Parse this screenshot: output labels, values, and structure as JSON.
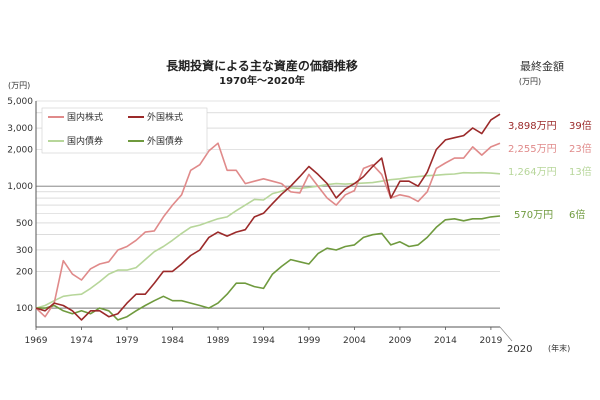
{
  "chart_data": {
    "type": "line",
    "title": "長期投資による主な資産の価額推移",
    "subtitle": "1970年～2020年",
    "ylabel": "(万円)",
    "xlabel": "(年末)",
    "yscale": "log",
    "ylim": [
      70,
      5000
    ],
    "xlim": [
      1969,
      2020
    ],
    "yticks": [
      100,
      200,
      300,
      500,
      1000,
      2000,
      3000,
      5000
    ],
    "ytick_labels": [
      "100",
      "200",
      "300",
      "500",
      "1,000",
      "2,000",
      "3,000",
      "5,000"
    ],
    "xticks": [
      1969,
      1974,
      1979,
      1984,
      1989,
      1994,
      1999,
      2004,
      2009,
      2014,
      2019
    ],
    "xtick_labels": [
      "1969",
      "1974",
      "1979",
      "1984",
      "1989",
      "1994",
      "1999",
      "2004",
      "2009",
      "2014",
      "2019"
    ],
    "x_end_label": "2020",
    "legend": "top-left",
    "grid": true,
    "final_header": "最終金額",
    "final_unit": "(万円)",
    "series": [
      {
        "name": "国内株式",
        "color": "#e08a8a",
        "final_amount": "2,255万円",
        "final_multiple": "23倍",
        "x": [
          1969,
          1970,
          1971,
          1972,
          1973,
          1974,
          1975,
          1976,
          1977,
          1978,
          1979,
          1980,
          1981,
          1982,
          1983,
          1984,
          1985,
          1986,
          1987,
          1988,
          1989,
          1990,
          1991,
          1992,
          1993,
          1994,
          1995,
          1996,
          1997,
          1998,
          1999,
          2000,
          2001,
          2002,
          2003,
          2004,
          2005,
          2006,
          2007,
          2008,
          2009,
          2010,
          2011,
          2012,
          2013,
          2014,
          2015,
          2016,
          2017,
          2018,
          2019,
          2020
        ],
        "y": [
          100,
          85,
          110,
          245,
          190,
          170,
          210,
          230,
          240,
          300,
          320,
          360,
          420,
          430,
          560,
          700,
          850,
          1350,
          1500,
          1950,
          2255,
          1350,
          1350,
          1050,
          1100,
          1150,
          1100,
          1050,
          900,
          880,
          1250,
          1000,
          800,
          700,
          850,
          920,
          1400,
          1500,
          1250,
          800,
          850,
          820,
          750,
          900,
          1400,
          1550,
          1700,
          1700,
          2100,
          1800,
          2100,
          2255
        ]
      },
      {
        "name": "外国株式",
        "color": "#9b2a2a",
        "final_amount": "3,898万円",
        "final_multiple": "39倍",
        "x": [
          1969,
          1970,
          1971,
          1972,
          1973,
          1974,
          1975,
          1976,
          1977,
          1978,
          1979,
          1980,
          1981,
          1982,
          1983,
          1984,
          1985,
          1986,
          1987,
          1988,
          1989,
          1990,
          1991,
          1992,
          1993,
          1994,
          1995,
          1996,
          1997,
          1998,
          1999,
          2000,
          2001,
          2002,
          2003,
          2004,
          2005,
          2006,
          2007,
          2008,
          2009,
          2010,
          2011,
          2012,
          2013,
          2014,
          2015,
          2016,
          2017,
          2018,
          2019,
          2020
        ],
        "y": [
          100,
          95,
          110,
          105,
          95,
          80,
          95,
          95,
          85,
          90,
          110,
          130,
          130,
          160,
          200,
          200,
          230,
          270,
          300,
          380,
          420,
          390,
          420,
          440,
          560,
          600,
          720,
          860,
          1000,
          1200,
          1450,
          1250,
          1050,
          800,
          950,
          1050,
          1200,
          1450,
          1700,
          800,
          1100,
          1100,
          1000,
          1300,
          2000,
          2400,
          2500,
          2600,
          3000,
          2700,
          3500,
          3898
        ]
      },
      {
        "name": "国内債券",
        "color": "#b7d69a",
        "final_amount": "1,264万円",
        "final_multiple": "13倍",
        "x": [
          1969,
          1970,
          1971,
          1972,
          1973,
          1974,
          1975,
          1976,
          1977,
          1978,
          1979,
          1980,
          1981,
          1982,
          1983,
          1984,
          1985,
          1986,
          1987,
          1988,
          1989,
          1990,
          1991,
          1992,
          1993,
          1994,
          1995,
          1996,
          1997,
          1998,
          1999,
          2000,
          2001,
          2002,
          2003,
          2004,
          2005,
          2006,
          2007,
          2008,
          2009,
          2010,
          2011,
          2012,
          2013,
          2014,
          2015,
          2016,
          2017,
          2018,
          2019,
          2020
        ],
        "y": [
          100,
          105,
          115,
          125,
          128,
          130,
          145,
          165,
          190,
          205,
          205,
          215,
          250,
          290,
          320,
          360,
          410,
          460,
          480,
          510,
          540,
          560,
          630,
          700,
          780,
          770,
          870,
          910,
          970,
          960,
          980,
          1000,
          1030,
          1050,
          1040,
          1050,
          1060,
          1070,
          1100,
          1130,
          1150,
          1180,
          1200,
          1220,
          1230,
          1250,
          1260,
          1290,
          1285,
          1290,
          1280,
          1264
        ]
      },
      {
        "name": "外国債券",
        "color": "#6f9a3e",
        "final_amount": "570万円",
        "final_multiple": "6倍",
        "x": [
          1969,
          1970,
          1971,
          1972,
          1973,
          1974,
          1975,
          1976,
          1977,
          1978,
          1979,
          1980,
          1981,
          1982,
          1983,
          1984,
          1985,
          1986,
          1987,
          1988,
          1989,
          1990,
          1991,
          1992,
          1993,
          1994,
          1995,
          1996,
          1997,
          1998,
          1999,
          2000,
          2001,
          2002,
          2003,
          2004,
          2005,
          2006,
          2007,
          2008,
          2009,
          2010,
          2011,
          2012,
          2013,
          2014,
          2015,
          2016,
          2017,
          2018,
          2019,
          2020
        ],
        "y": [
          100,
          100,
          105,
          95,
          90,
          95,
          90,
          100,
          95,
          80,
          85,
          95,
          105,
          115,
          125,
          115,
          115,
          110,
          105,
          100,
          110,
          130,
          160,
          160,
          150,
          145,
          190,
          220,
          250,
          240,
          230,
          280,
          310,
          300,
          320,
          330,
          380,
          400,
          410,
          330,
          350,
          320,
          330,
          380,
          460,
          530,
          540,
          520,
          540,
          540,
          560,
          570
        ]
      }
    ]
  }
}
